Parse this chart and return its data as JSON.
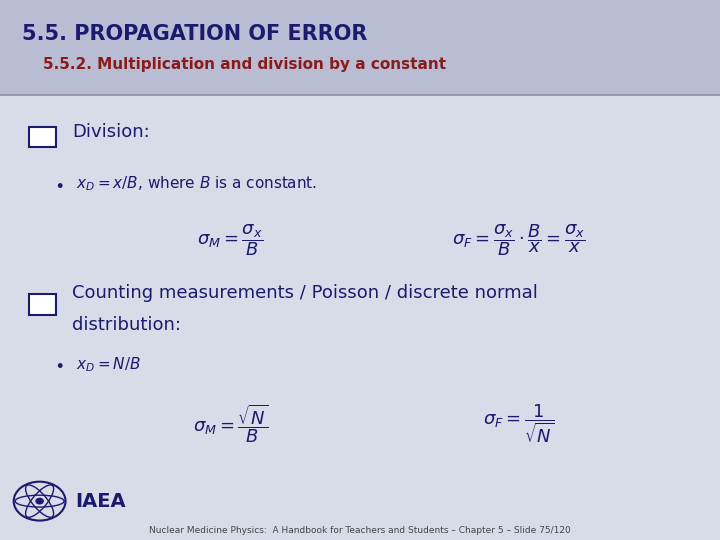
{
  "title_main": "5.5. PROPAGATION OF ERROR",
  "title_sub": "5.5.2. Multiplication and division by a constant",
  "header_bg": "#b8bdd4",
  "header_line_color": "#8a8fa8",
  "body_bg": "#d8dce8",
  "title_main_color": "#1a1a6e",
  "title_sub_color": "#8b1a1a",
  "text_color": "#1a1a6e",
  "checkbox_color": "#1a1a6e",
  "section1_header": "Division:",
  "section2_line1": "Counting measurements / Poisson / discrete normal",
  "section2_line2": "distribution:",
  "footer_text": "Nuclear Medicine Physics:  A Handbook for Teachers and Students – Chapter 5 – Slide 75/120",
  "iaea_text": "IAEA"
}
